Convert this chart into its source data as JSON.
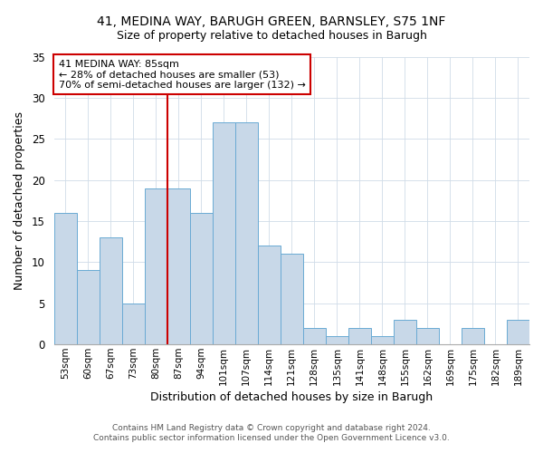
{
  "title1": "41, MEDINA WAY, BARUGH GREEN, BARNSLEY, S75 1NF",
  "title2": "Size of property relative to detached houses in Barugh",
  "xlabel": "Distribution of detached houses by size in Barugh",
  "ylabel": "Number of detached properties",
  "bin_labels": [
    "53sqm",
    "60sqm",
    "67sqm",
    "73sqm",
    "80sqm",
    "87sqm",
    "94sqm",
    "101sqm",
    "107sqm",
    "114sqm",
    "121sqm",
    "128sqm",
    "135sqm",
    "141sqm",
    "148sqm",
    "155sqm",
    "162sqm",
    "169sqm",
    "175sqm",
    "182sqm",
    "189sqm"
  ],
  "bin_counts": [
    16,
    9,
    13,
    5,
    19,
    19,
    16,
    27,
    27,
    12,
    11,
    2,
    1,
    2,
    1,
    3,
    2,
    0,
    2,
    0,
    3
  ],
  "bar_color": "#c8d8e8",
  "bar_edgecolor": "#6aaad4",
  "vline_x": 4.5,
  "vline_color": "#cc0000",
  "annotation_line1": "41 MEDINA WAY: 85sqm",
  "annotation_line2": "← 28% of detached houses are smaller (53)",
  "annotation_line3": "70% of semi-detached houses are larger (132) →",
  "annotation_box_edgecolor": "#cc0000",
  "ylim": [
    0,
    35
  ],
  "yticks": [
    0,
    5,
    10,
    15,
    20,
    25,
    30,
    35
  ],
  "footer1": "Contains HM Land Registry data © Crown copyright and database right 2024.",
  "footer2": "Contains public sector information licensed under the Open Government Licence v3.0."
}
